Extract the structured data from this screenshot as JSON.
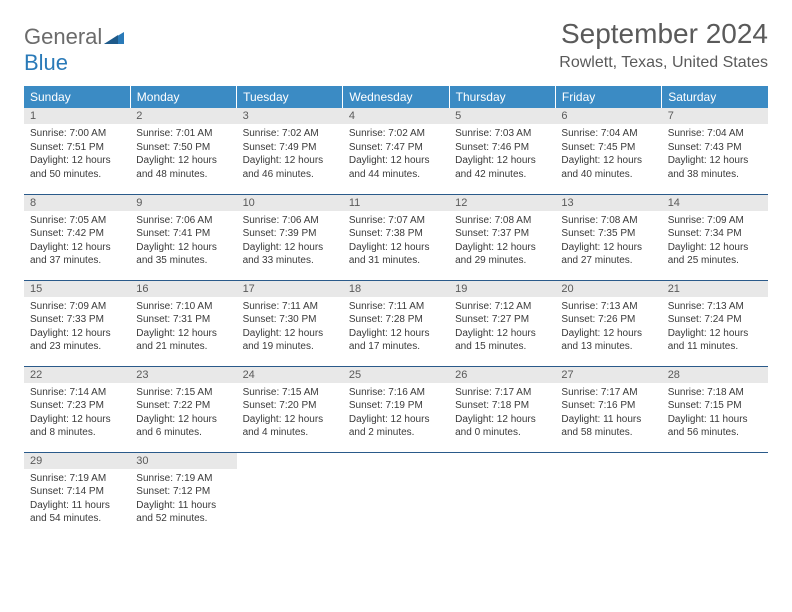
{
  "logo": {
    "word1": "General",
    "word2": "Blue"
  },
  "title": "September 2024",
  "location": "Rowlett, Texas, United States",
  "colors": {
    "header_bg": "#3b8bc4",
    "header_text": "#ffffff",
    "daynum_bg": "#e8e8e8",
    "row_border": "#2a5a8a",
    "title_color": "#5a5a5a",
    "logo_gray": "#6b6b6b",
    "logo_blue": "#2a7ab8"
  },
  "typography": {
    "title_fontsize": 28,
    "location_fontsize": 16,
    "header_fontsize": 12,
    "daynum_fontsize": 11,
    "body_fontsize": 10
  },
  "day_headers": [
    "Sunday",
    "Monday",
    "Tuesday",
    "Wednesday",
    "Thursday",
    "Friday",
    "Saturday"
  ],
  "weeks": [
    [
      {
        "n": "1",
        "sr": "Sunrise: 7:00 AM",
        "ss": "Sunset: 7:51 PM",
        "dl": "Daylight: 12 hours and 50 minutes."
      },
      {
        "n": "2",
        "sr": "Sunrise: 7:01 AM",
        "ss": "Sunset: 7:50 PM",
        "dl": "Daylight: 12 hours and 48 minutes."
      },
      {
        "n": "3",
        "sr": "Sunrise: 7:02 AM",
        "ss": "Sunset: 7:49 PM",
        "dl": "Daylight: 12 hours and 46 minutes."
      },
      {
        "n": "4",
        "sr": "Sunrise: 7:02 AM",
        "ss": "Sunset: 7:47 PM",
        "dl": "Daylight: 12 hours and 44 minutes."
      },
      {
        "n": "5",
        "sr": "Sunrise: 7:03 AM",
        "ss": "Sunset: 7:46 PM",
        "dl": "Daylight: 12 hours and 42 minutes."
      },
      {
        "n": "6",
        "sr": "Sunrise: 7:04 AM",
        "ss": "Sunset: 7:45 PM",
        "dl": "Daylight: 12 hours and 40 minutes."
      },
      {
        "n": "7",
        "sr": "Sunrise: 7:04 AM",
        "ss": "Sunset: 7:43 PM",
        "dl": "Daylight: 12 hours and 38 minutes."
      }
    ],
    [
      {
        "n": "8",
        "sr": "Sunrise: 7:05 AM",
        "ss": "Sunset: 7:42 PM",
        "dl": "Daylight: 12 hours and 37 minutes."
      },
      {
        "n": "9",
        "sr": "Sunrise: 7:06 AM",
        "ss": "Sunset: 7:41 PM",
        "dl": "Daylight: 12 hours and 35 minutes."
      },
      {
        "n": "10",
        "sr": "Sunrise: 7:06 AM",
        "ss": "Sunset: 7:39 PM",
        "dl": "Daylight: 12 hours and 33 minutes."
      },
      {
        "n": "11",
        "sr": "Sunrise: 7:07 AM",
        "ss": "Sunset: 7:38 PM",
        "dl": "Daylight: 12 hours and 31 minutes."
      },
      {
        "n": "12",
        "sr": "Sunrise: 7:08 AM",
        "ss": "Sunset: 7:37 PM",
        "dl": "Daylight: 12 hours and 29 minutes."
      },
      {
        "n": "13",
        "sr": "Sunrise: 7:08 AM",
        "ss": "Sunset: 7:35 PM",
        "dl": "Daylight: 12 hours and 27 minutes."
      },
      {
        "n": "14",
        "sr": "Sunrise: 7:09 AM",
        "ss": "Sunset: 7:34 PM",
        "dl": "Daylight: 12 hours and 25 minutes."
      }
    ],
    [
      {
        "n": "15",
        "sr": "Sunrise: 7:09 AM",
        "ss": "Sunset: 7:33 PM",
        "dl": "Daylight: 12 hours and 23 minutes."
      },
      {
        "n": "16",
        "sr": "Sunrise: 7:10 AM",
        "ss": "Sunset: 7:31 PM",
        "dl": "Daylight: 12 hours and 21 minutes."
      },
      {
        "n": "17",
        "sr": "Sunrise: 7:11 AM",
        "ss": "Sunset: 7:30 PM",
        "dl": "Daylight: 12 hours and 19 minutes."
      },
      {
        "n": "18",
        "sr": "Sunrise: 7:11 AM",
        "ss": "Sunset: 7:28 PM",
        "dl": "Daylight: 12 hours and 17 minutes."
      },
      {
        "n": "19",
        "sr": "Sunrise: 7:12 AM",
        "ss": "Sunset: 7:27 PM",
        "dl": "Daylight: 12 hours and 15 minutes."
      },
      {
        "n": "20",
        "sr": "Sunrise: 7:13 AM",
        "ss": "Sunset: 7:26 PM",
        "dl": "Daylight: 12 hours and 13 minutes."
      },
      {
        "n": "21",
        "sr": "Sunrise: 7:13 AM",
        "ss": "Sunset: 7:24 PM",
        "dl": "Daylight: 12 hours and 11 minutes."
      }
    ],
    [
      {
        "n": "22",
        "sr": "Sunrise: 7:14 AM",
        "ss": "Sunset: 7:23 PM",
        "dl": "Daylight: 12 hours and 8 minutes."
      },
      {
        "n": "23",
        "sr": "Sunrise: 7:15 AM",
        "ss": "Sunset: 7:22 PM",
        "dl": "Daylight: 12 hours and 6 minutes."
      },
      {
        "n": "24",
        "sr": "Sunrise: 7:15 AM",
        "ss": "Sunset: 7:20 PM",
        "dl": "Daylight: 12 hours and 4 minutes."
      },
      {
        "n": "25",
        "sr": "Sunrise: 7:16 AM",
        "ss": "Sunset: 7:19 PM",
        "dl": "Daylight: 12 hours and 2 minutes."
      },
      {
        "n": "26",
        "sr": "Sunrise: 7:17 AM",
        "ss": "Sunset: 7:18 PM",
        "dl": "Daylight: 12 hours and 0 minutes."
      },
      {
        "n": "27",
        "sr": "Sunrise: 7:17 AM",
        "ss": "Sunset: 7:16 PM",
        "dl": "Daylight: 11 hours and 58 minutes."
      },
      {
        "n": "28",
        "sr": "Sunrise: 7:18 AM",
        "ss": "Sunset: 7:15 PM",
        "dl": "Daylight: 11 hours and 56 minutes."
      }
    ],
    [
      {
        "n": "29",
        "sr": "Sunrise: 7:19 AM",
        "ss": "Sunset: 7:14 PM",
        "dl": "Daylight: 11 hours and 54 minutes."
      },
      {
        "n": "30",
        "sr": "Sunrise: 7:19 AM",
        "ss": "Sunset: 7:12 PM",
        "dl": "Daylight: 11 hours and 52 minutes."
      },
      null,
      null,
      null,
      null,
      null
    ]
  ]
}
